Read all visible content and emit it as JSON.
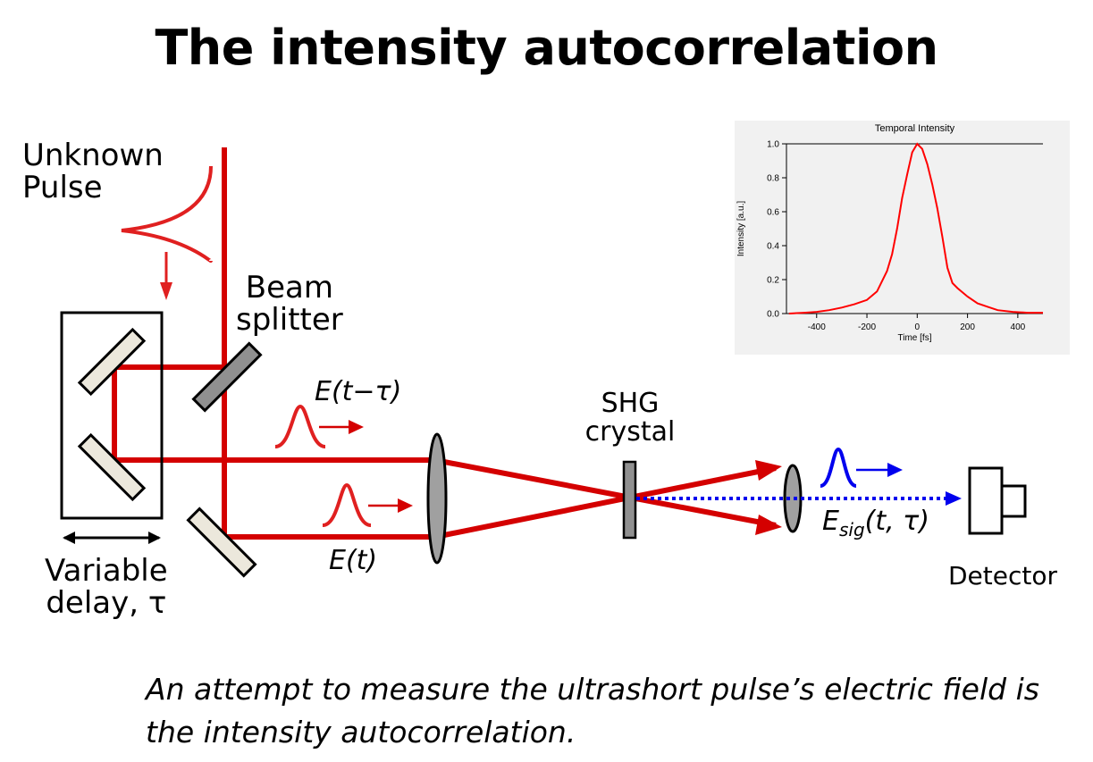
{
  "title": "The intensity autocorrelation",
  "labels": {
    "unknown_pulse_line1": "Unknown",
    "unknown_pulse_line2": "Pulse",
    "beam_splitter_line1": "Beam",
    "beam_splitter_line2": "splitter",
    "delayed_field": "E(t−τ)",
    "field": "E(t)",
    "shg_line1": "SHG",
    "shg_line2": "crystal",
    "signal_field_base": "E",
    "signal_field_sub": "sig",
    "signal_field_args": "(t, τ)",
    "detector": "Detector",
    "variable_delay_line1": "Variable",
    "variable_delay_line2": "delay, τ"
  },
  "caption_line1": "An attempt to measure the ultrashort pulse’s electric field is",
  "caption_line2": "the intensity autocorrelation.",
  "colors": {
    "beam": "#d40000",
    "pulse": "#e02020",
    "signal": "#0000ee",
    "mirror_fill": "#ece8dc",
    "splitter_fill": "#909090",
    "lens_fill": "#a0a0a0"
  },
  "chart_data": {
    "type": "line",
    "title": "Temporal Intensity",
    "xlabel": "Time [fs]",
    "ylabel": "Intensity [a.u.]",
    "xlim": [
      -520,
      500
    ],
    "ylim": [
      0,
      1.0
    ],
    "x_ticks": [
      -400,
      -200,
      0,
      200,
      400
    ],
    "y_ticks": [
      0.0,
      0.2,
      0.4,
      0.6,
      0.8,
      1.0
    ],
    "x_tick_labels": [
      "-400",
      "-200",
      "0",
      "200",
      "400"
    ],
    "y_tick_labels": [
      "0.0",
      "0.2",
      "0.4",
      "0.6",
      "0.8",
      "1.0"
    ],
    "grid": false,
    "series": [
      {
        "color": "#ff0000",
        "x": [
          -510,
          -450,
          -400,
          -350,
          -300,
          -250,
          -200,
          -160,
          -120,
          -100,
          -80,
          -60,
          -40,
          -20,
          0,
          20,
          40,
          60,
          80,
          100,
          120,
          140,
          160,
          200,
          240,
          280,
          320,
          380,
          440,
          500
        ],
        "y": [
          0.0,
          0.005,
          0.01,
          0.02,
          0.035,
          0.055,
          0.08,
          0.13,
          0.25,
          0.35,
          0.5,
          0.68,
          0.82,
          0.95,
          1.0,
          0.97,
          0.88,
          0.76,
          0.62,
          0.45,
          0.27,
          0.18,
          0.15,
          0.1,
          0.06,
          0.04,
          0.02,
          0.01,
          0.005,
          0.005
        ]
      }
    ]
  }
}
